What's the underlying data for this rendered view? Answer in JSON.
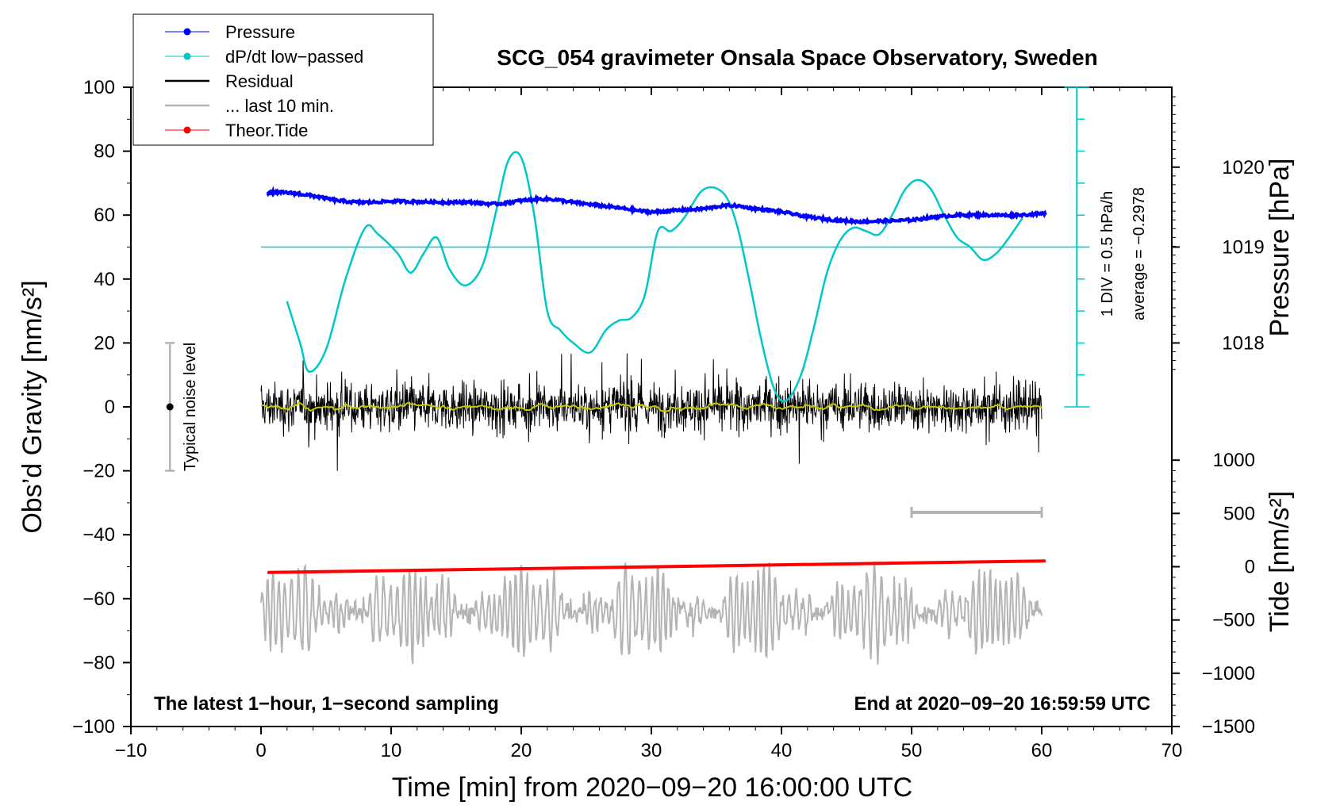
{
  "chart_data": {
    "type": "line",
    "title": "SCG_054 gravimeter Onsala Space Observatory, Sweden",
    "xlabel": "Time [min] from 2020−09−20 16:00:00 UTC",
    "ylabel_left": "Obs’d Gravity [nm/s²]",
    "ylabel_pressure": "Pressure [hPa]",
    "ylabel_tide": "Tide [nm/s²]",
    "xlim": [
      -10,
      70
    ],
    "ylim": [
      -100,
      100
    ],
    "x_ticks": [
      -10,
      0,
      10,
      20,
      30,
      40,
      50,
      60,
      70
    ],
    "x_tick_labels": [
      "−10",
      "0",
      "10",
      "20",
      "30",
      "40",
      "50",
      "60",
      "70"
    ],
    "y_ticks": [
      -100,
      -80,
      -60,
      -40,
      -20,
      0,
      20,
      40,
      60,
      80,
      100
    ],
    "y_tick_labels": [
      "−100",
      "−80",
      "−60",
      "−40",
      "−20",
      "0",
      "20",
      "40",
      "60",
      "80",
      "100"
    ],
    "pressure_axis": {
      "ticks": [
        1018,
        1019,
        1020
      ],
      "tick_labels": [
        "1018",
        "1019",
        "1020"
      ],
      "gravity_equivalent": [
        20,
        50,
        75
      ]
    },
    "tide_axis": {
      "ticks": [
        -1500,
        -1000,
        -500,
        0,
        500,
        1000
      ],
      "tick_labels": [
        "−1500",
        "−1000",
        "−500",
        "0",
        "500",
        "1000"
      ],
      "gravity_equivalent": [
        -100,
        -83.33,
        -66.67,
        -50,
        -33.33,
        -16.67
      ]
    },
    "series": [
      {
        "name": "Pressure",
        "color": "#0000ff",
        "unit": "gravity-axis equivalent",
        "x": [
          0.5,
          2,
          4,
          6,
          8,
          10,
          12,
          14,
          16,
          18,
          20,
          22,
          24,
          26,
          28,
          30,
          32,
          34,
          36,
          38,
          40,
          42,
          44,
          46,
          48,
          50,
          52,
          54,
          56,
          58,
          60.3
        ],
        "y": [
          67,
          67,
          66,
          64.5,
          64,
          64.3,
          64.2,
          64,
          64,
          63.5,
          64.5,
          65,
          64,
          63,
          62,
          61,
          61.5,
          62,
          63,
          62,
          61,
          59.5,
          58.5,
          58,
          58.2,
          58.5,
          59.5,
          60,
          60,
          60,
          60.5
        ]
      },
      {
        "name": "dP/dt low−passed",
        "color": "#00c8c8",
        "unit": "gravity-axis equivalent",
        "x": [
          2,
          3,
          3.7,
          5,
          6.5,
          8,
          9,
          10.5,
          11.5,
          12.5,
          13.5,
          14.5,
          15.7,
          17,
          18,
          19,
          20,
          21,
          22,
          23,
          24,
          25.3,
          26.5,
          27.5,
          28.5,
          29.5,
          30.5,
          31.5,
          32.5,
          34,
          35.5,
          36.5,
          37.5,
          38.5,
          39.5,
          40.4,
          41.5,
          42.5,
          43.5,
          44.5,
          45.5,
          46.5,
          47.5,
          48.5,
          49.5,
          50.5,
          51.5,
          52.5,
          53.5,
          54.5,
          55.5,
          56.5,
          57.5,
          58.5
        ],
        "y": [
          33,
          20,
          11,
          18,
          40,
          56,
          54,
          48,
          42,
          48,
          53,
          43,
          38,
          44,
          60,
          77,
          78,
          60,
          30,
          24,
          20,
          17,
          24,
          27,
          28,
          35,
          55,
          55,
          59,
          68,
          67,
          58,
          40,
          20,
          5,
          2,
          10,
          25,
          42,
          52,
          56,
          55,
          54,
          60,
          68,
          71,
          68,
          60,
          53,
          50,
          46,
          48,
          53,
          59
        ]
      },
      {
        "name": "Residual",
        "color": "#000000",
        "x_range": [
          0,
          60
        ],
        "mean": 0,
        "approx_range": [
          -20,
          23
        ]
      },
      {
        "name": "... last 10 min.",
        "color": "#b4b4b4",
        "x_range": [
          0,
          60
        ],
        "baseline": -64,
        "approx_range": [
          -81,
          -40
        ]
      },
      {
        "name": "Theor.Tide",
        "color": "#ff0000",
        "unit": "gravity-axis equivalent",
        "x": [
          0.5,
          60.3
        ],
        "y": [
          -51.8,
          -48.2
        ]
      }
    ],
    "smoothed_residual_color": "#c8c800",
    "bandpass_line_y": 50,
    "noise_bar": {
      "x": -7,
      "low": -20,
      "high": 20
    },
    "ten_min_bar": {
      "x_start": 50,
      "x_end": 60
    },
    "legend": {
      "placement": "top-left",
      "entries": [
        "Pressure",
        "dP/dt low−passed",
        "Residual",
        "... last 10 min.",
        "Theor.Tide"
      ]
    }
  },
  "annotations": {
    "noise_label": "Typical noise level",
    "div_label": "1 DIV = 0.5 hPa/h",
    "average_label": "average = −0.2978",
    "bottom_left_note": "The latest 1−hour, 1−second sampling",
    "bottom_right_note": "End at 2020−09−20 16:59:59 UTC"
  }
}
